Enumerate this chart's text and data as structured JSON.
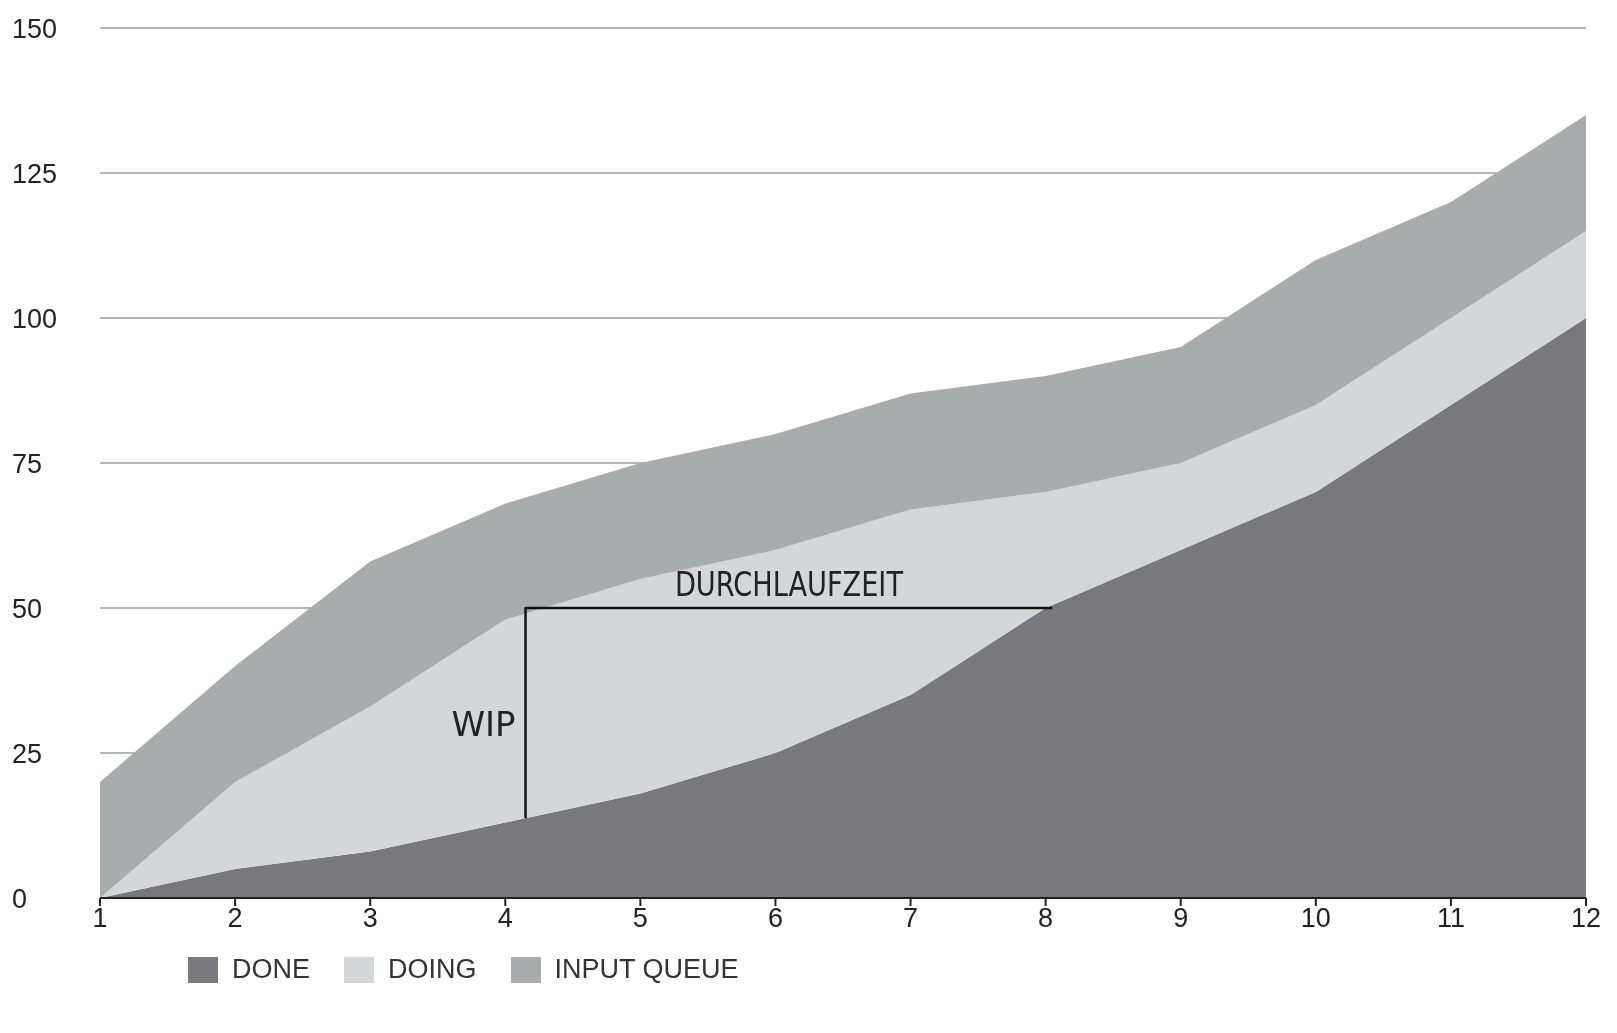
{
  "chart_data": {
    "type": "area",
    "stacked": true,
    "x": [
      1,
      2,
      3,
      4,
      5,
      6,
      7,
      8,
      9,
      10,
      11,
      12
    ],
    "series": [
      {
        "name": "DONE",
        "color": "#79787c",
        "values": [
          0,
          5,
          8,
          13,
          18,
          25,
          35,
          50,
          60,
          70,
          85,
          100
        ]
      },
      {
        "name": "DOING",
        "color": "#d4d6d7",
        "values": [
          0,
          15,
          25,
          35,
          37,
          35,
          32,
          20,
          15,
          15,
          15,
          15
        ]
      },
      {
        "name": "INPUT QUEUE",
        "color": "#a9acac",
        "values": [
          20,
          20,
          25,
          20,
          20,
          20,
          20,
          20,
          20,
          25,
          20,
          20
        ]
      }
    ],
    "xlim": [
      1,
      12
    ],
    "xticks": [
      1,
      2,
      3,
      4,
      5,
      6,
      7,
      8,
      9,
      10,
      11,
      12
    ],
    "ylim": [
      0,
      150
    ],
    "yticks": [
      0,
      25,
      50,
      75,
      100,
      125,
      150
    ],
    "grid": "y",
    "legend": "bottom left",
    "annotations": [
      "DURCHLAUFZEIT",
      "WIP"
    ]
  }
}
